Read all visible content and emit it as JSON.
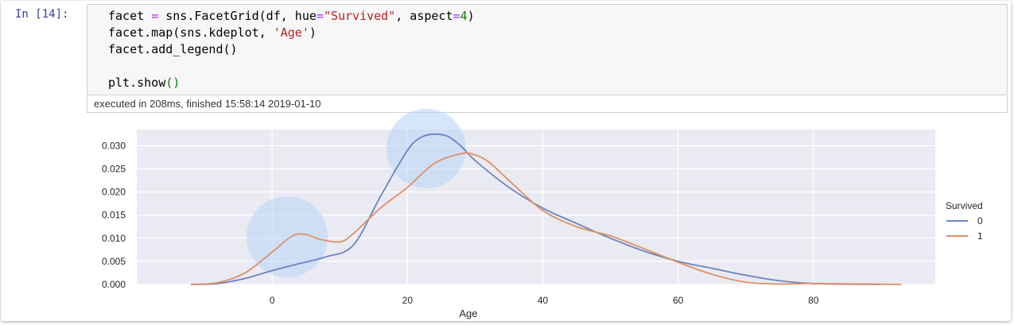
{
  "cell": {
    "prompt": "In [14]:",
    "code_lines": [
      "facet = sns.FacetGrid(df, hue=\"Survived\", aspect=4)",
      "facet.map(sns.kdeplot, 'Age')",
      "facet.add_legend()",
      "",
      "plt.show()"
    ],
    "execution_info": "executed in 208ms, finished 15:58:14 2019-01-10"
  },
  "chart_data": {
    "type": "line",
    "title": "",
    "xlabel": "Age",
    "ylabel": "",
    "xlim": [
      -20,
      98
    ],
    "ylim": [
      0,
      0.0335
    ],
    "x_ticks": [
      0,
      20,
      40,
      60,
      80
    ],
    "x_tick_labels": [
      "0",
      "20",
      "40",
      "60",
      "80"
    ],
    "y_ticks": [
      0,
      0.005,
      0.01,
      0.015,
      0.02,
      0.025,
      0.03
    ],
    "y_tick_labels": [
      "0.000",
      "0.005",
      "0.010",
      "0.015",
      "0.020",
      "0.025",
      "0.030"
    ],
    "grid": true,
    "legend": {
      "title": "Survived",
      "placement": "right",
      "entries": [
        "0",
        "1"
      ]
    },
    "colors": {
      "series_0": "#6b84c0",
      "series_1": "#dd9165",
      "background": "#eaeaf2"
    },
    "series": [
      {
        "name": "0",
        "x": [
          -12,
          -8,
          -4,
          0,
          4,
          8,
          12,
          16,
          20,
          22,
          24,
          26,
          28,
          30,
          35,
          40,
          45,
          50,
          55,
          60,
          65,
          70,
          75,
          80,
          90
        ],
        "y": [
          0,
          0.0002,
          0.0013,
          0.003,
          0.0045,
          0.006,
          0.0085,
          0.019,
          0.029,
          0.0318,
          0.0325,
          0.032,
          0.0298,
          0.0268,
          0.021,
          0.0165,
          0.0132,
          0.01,
          0.0072,
          0.005,
          0.0035,
          0.002,
          0.0008,
          0.0002,
          0
        ]
      },
      {
        "name": "1",
        "x": [
          -12,
          -8,
          -4,
          0,
          3,
          5,
          7,
          10,
          12,
          16,
          20,
          24,
          28,
          30,
          32,
          35,
          40,
          45,
          50,
          55,
          60,
          65,
          70,
          75,
          80,
          93
        ],
        "y": [
          0,
          0.0004,
          0.0025,
          0.007,
          0.0105,
          0.0108,
          0.0098,
          0.0092,
          0.011,
          0.0165,
          0.021,
          0.0262,
          0.0283,
          0.028,
          0.0265,
          0.0225,
          0.016,
          0.0125,
          0.0105,
          0.0077,
          0.0048,
          0.0022,
          0.0005,
          0.0001,
          0.0002,
          0
        ]
      }
    ]
  }
}
